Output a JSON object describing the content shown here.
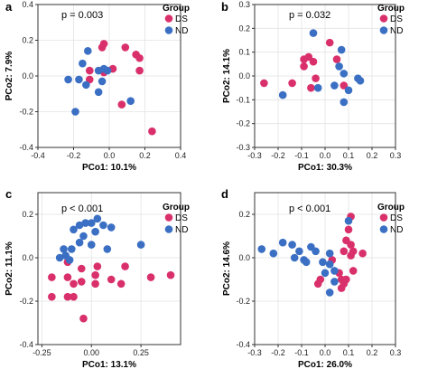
{
  "colors": {
    "DS": "#d9306b",
    "ND": "#3a6fc4",
    "grid": "#e3e3e3",
    "frame": "#333333"
  },
  "legend": {
    "title": "Group",
    "labels": [
      "DS",
      "ND"
    ]
  },
  "chart_data": [
    {
      "type": "scatter",
      "panel": "a",
      "annotation": "p = 0.003",
      "xlabel": "PCo1: 10.1%",
      "ylabel": "PCo2: 7.9%",
      "xlim": [
        -0.4,
        0.4
      ],
      "ylim": [
        -0.4,
        0.4
      ],
      "xticks": [
        -0.4,
        -0.2,
        0.0,
        0.2,
        0.4
      ],
      "xtick_labels": [
        "-0.4",
        "-0.2",
        "0.0",
        "0.2",
        "0.4"
      ],
      "yticks": [
        -0.4,
        -0.2,
        0.0,
        0.2,
        0.4
      ],
      "ytick_labels": [
        "-0.4",
        "-0.2",
        "0.0",
        "0.2",
        "0.4"
      ],
      "grid": true,
      "legend_position": "top-right",
      "series": [
        {
          "name": "DS",
          "points": [
            [
              -0.04,
              0.16
            ],
            [
              -0.03,
              0.18
            ],
            [
              0.09,
              0.16
            ],
            [
              0.15,
              0.12
            ],
            [
              0.17,
              0.1
            ],
            [
              0.02,
              0.04
            ],
            [
              -0.11,
              0.03
            ],
            [
              0.17,
              0.03
            ],
            [
              -0.03,
              0.02
            ],
            [
              -0.11,
              -0.02
            ],
            [
              0.07,
              -0.16
            ],
            [
              0.24,
              -0.31
            ]
          ]
        },
        {
          "name": "ND",
          "points": [
            [
              -0.12,
              0.14
            ],
            [
              -0.15,
              0.07
            ],
            [
              -0.23,
              -0.02
            ],
            [
              -0.17,
              -0.02
            ],
            [
              -0.06,
              0.03
            ],
            [
              -0.03,
              0.04
            ],
            [
              -0.01,
              0.03
            ],
            [
              -0.04,
              -0.03
            ],
            [
              -0.13,
              -0.05
            ],
            [
              -0.06,
              -0.09
            ],
            [
              0.12,
              -0.14
            ],
            [
              -0.19,
              -0.2
            ]
          ]
        }
      ]
    },
    {
      "type": "scatter",
      "panel": "b",
      "annotation": "p = 0.032",
      "xlabel": "PCo1: 30.3%",
      "ylabel": "PCo2: 14.1%",
      "xlim": [
        -0.3,
        0.3
      ],
      "ylim": [
        -0.3,
        0.3
      ],
      "xticks": [
        -0.3,
        -0.2,
        -0.1,
        0.0,
        0.1,
        0.2,
        0.3
      ],
      "xtick_labels": [
        "-0.3",
        "-0.2",
        "-0.1",
        "0.0",
        "0.1",
        "0.2",
        "0.3"
      ],
      "yticks": [
        -0.3,
        -0.2,
        -0.1,
        0.0,
        0.1,
        0.2,
        0.3
      ],
      "ytick_labels": [
        "-0.3",
        "-0.2",
        "-0.1",
        "0.0",
        "0.1",
        "0.2",
        "0.3"
      ],
      "grid": true,
      "legend_position": "top-right",
      "series": [
        {
          "name": "DS",
          "points": [
            [
              0.02,
              0.14
            ],
            [
              -0.07,
              0.08
            ],
            [
              -0.05,
              0.06
            ],
            [
              -0.09,
              0.07
            ],
            [
              -0.09,
              0.04
            ],
            [
              0.05,
              0.07
            ],
            [
              -0.04,
              -0.01
            ],
            [
              -0.26,
              -0.03
            ],
            [
              -0.14,
              -0.03
            ],
            [
              -0.06,
              -0.05
            ],
            [
              0.08,
              -0.04
            ]
          ]
        },
        {
          "name": "ND",
          "points": [
            [
              -0.05,
              0.18
            ],
            [
              0.07,
              0.11
            ],
            [
              0.06,
              0.04
            ],
            [
              0.08,
              0.01
            ],
            [
              0.14,
              -0.01
            ],
            [
              0.15,
              -0.02
            ],
            [
              0.04,
              -0.04
            ],
            [
              -0.18,
              -0.08
            ],
            [
              -0.03,
              -0.05
            ],
            [
              0.1,
              -0.06
            ],
            [
              0.08,
              -0.11
            ]
          ]
        }
      ]
    },
    {
      "type": "scatter",
      "panel": "c",
      "annotation": "p < 0.001",
      "xlabel": "PCo1: 13.1%",
      "ylabel": "PCo2: 11.1%",
      "xlim": [
        -0.27,
        0.45
      ],
      "ylim": [
        -0.4,
        0.3
      ],
      "xticks": [
        -0.25,
        0.0,
        0.25
      ],
      "xtick_labels": [
        "-0.25",
        "0.00",
        "0.25"
      ],
      "yticks": [
        -0.4,
        -0.2,
        0.0,
        0.2
      ],
      "ytick_labels": [
        "-0.4",
        "-0.2",
        "0.0",
        "0.2"
      ],
      "grid": true,
      "legend_position": "top-right",
      "series": [
        {
          "name": "DS",
          "points": [
            [
              -0.12,
              -0.02
            ],
            [
              0.03,
              -0.04
            ],
            [
              0.02,
              -0.08
            ],
            [
              0.17,
              -0.04
            ],
            [
              -0.05,
              -0.05
            ],
            [
              -0.12,
              -0.09
            ],
            [
              -0.05,
              -0.11
            ],
            [
              0.1,
              -0.1
            ],
            [
              0.02,
              -0.12
            ],
            [
              0.3,
              -0.09
            ],
            [
              0.4,
              -0.08
            ],
            [
              -0.2,
              -0.09
            ],
            [
              -0.09,
              -0.12
            ],
            [
              0.15,
              -0.12
            ],
            [
              -0.2,
              -0.18
            ],
            [
              -0.12,
              -0.18
            ],
            [
              -0.09,
              -0.18
            ],
            [
              -0.04,
              -0.28
            ]
          ]
        },
        {
          "name": "ND",
          "points": [
            [
              -0.09,
              0.13
            ],
            [
              -0.06,
              0.15
            ],
            [
              -0.03,
              0.16
            ],
            [
              0.0,
              0.16
            ],
            [
              0.03,
              0.18
            ],
            [
              0.06,
              0.15
            ],
            [
              0.1,
              0.14
            ],
            [
              -0.04,
              0.1
            ],
            [
              0.02,
              0.12
            ],
            [
              -0.06,
              0.07
            ],
            [
              -0.14,
              0.04
            ],
            [
              -0.1,
              0.04
            ],
            [
              -0.13,
              0.01
            ],
            [
              -0.16,
              0.0
            ],
            [
              -0.11,
              -0.01
            ],
            [
              0.0,
              0.06
            ],
            [
              0.08,
              0.04
            ],
            [
              0.25,
              0.06
            ]
          ]
        }
      ]
    },
    {
      "type": "scatter",
      "panel": "d",
      "annotation": "p < 0.001",
      "xlabel": "PCo1: 26.0%",
      "ylabel": "PCo2: 14.6%",
      "xlim": [
        -0.3,
        0.3
      ],
      "ylim": [
        -0.4,
        0.3
      ],
      "xticks": [
        -0.3,
        -0.2,
        -0.1,
        0.0,
        0.1,
        0.2,
        0.3
      ],
      "xtick_labels": [
        "-0.3",
        "-0.2",
        "-0.1",
        "0.0",
        "0.1",
        "0.2",
        "0.3"
      ],
      "yticks": [
        -0.4,
        -0.2,
        0.0,
        0.2
      ],
      "ytick_labels": [
        "-0.4",
        "-0.2",
        "0.0",
        "0.2"
      ],
      "grid": true,
      "legend_position": "top-right",
      "series": [
        {
          "name": "DS",
          "points": [
            [
              0.11,
              0.19
            ],
            [
              0.1,
              0.13
            ],
            [
              0.09,
              0.08
            ],
            [
              0.11,
              0.06
            ],
            [
              0.12,
              0.03
            ],
            [
              0.08,
              0.03
            ],
            [
              0.16,
              0.02
            ],
            [
              0.11,
              0.01
            ],
            [
              0.03,
              -0.01
            ],
            [
              0.12,
              -0.06
            ],
            [
              0.06,
              -0.07
            ],
            [
              0.07,
              -0.1
            ],
            [
              0.09,
              -0.1
            ],
            [
              -0.02,
              -0.1
            ],
            [
              -0.03,
              -0.12
            ],
            [
              0.08,
              -0.12
            ],
            [
              0.07,
              -0.14
            ]
          ]
        },
        {
          "name": "ND",
          "points": [
            [
              0.1,
              0.17
            ],
            [
              -0.18,
              0.07
            ],
            [
              -0.14,
              0.06
            ],
            [
              -0.06,
              0.05
            ],
            [
              -0.11,
              0.03
            ],
            [
              -0.04,
              0.03
            ],
            [
              0.02,
              0.02
            ],
            [
              -0.27,
              0.04
            ],
            [
              -0.22,
              0.02
            ],
            [
              -0.13,
              0.0
            ],
            [
              -0.09,
              -0.01
            ],
            [
              0.02,
              -0.03
            ],
            [
              -0.01,
              -0.02
            ],
            [
              -0.08,
              -0.02
            ],
            [
              0.04,
              -0.06
            ],
            [
              0.0,
              -0.07
            ],
            [
              0.04,
              -0.11
            ],
            [
              0.02,
              -0.16
            ]
          ]
        }
      ]
    }
  ]
}
